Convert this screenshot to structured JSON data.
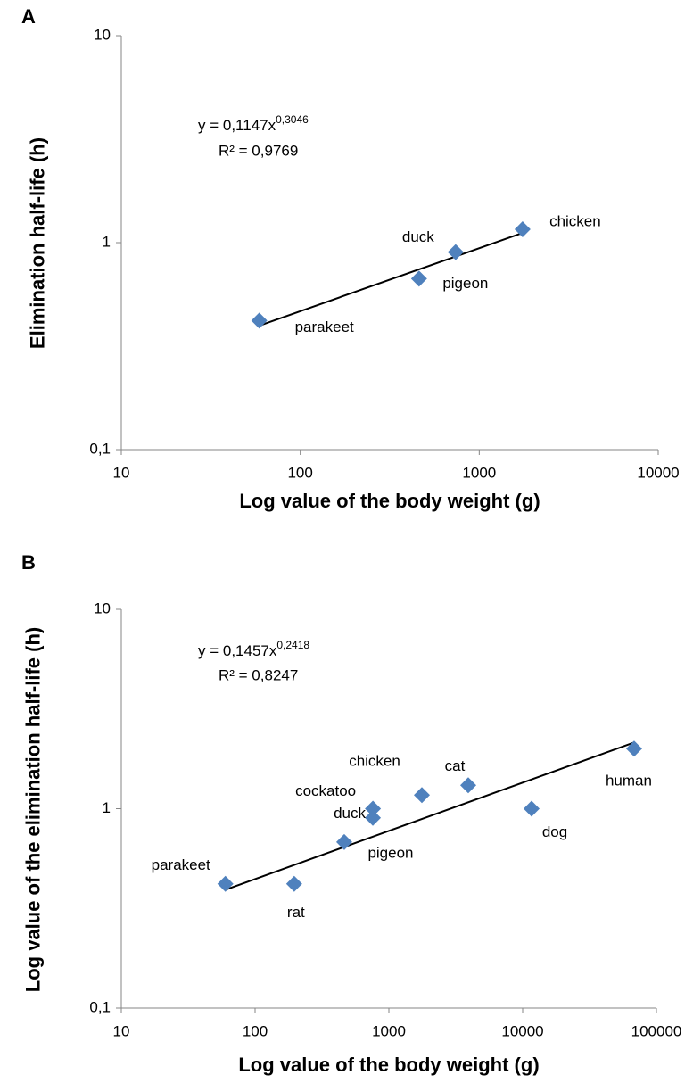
{
  "chart_data": [
    {
      "type": "scatter",
      "panel": "A",
      "labels": [
        "parakeet",
        "pigeon",
        "duck",
        "chicken"
      ],
      "x": [
        59,
        461,
        738,
        1746
      ],
      "values": [
        0.42,
        0.67,
        0.9,
        1.16
      ],
      "color": "#4f81bd",
      "trendline": {
        "coefficient": 0.1147,
        "exponent": 0.3046,
        "color": "#000000"
      },
      "equation": "y = 0,1147x",
      "equation_exponent": "0,3046",
      "r_squared": "R² = 0,9769",
      "x_label": "Log value of the body weight (g)",
      "y_label": "Elimination half-life (h)",
      "x_log": true,
      "y_log": true,
      "xlim": [
        10,
        10000
      ],
      "xticks": [
        10,
        100,
        1000,
        10000
      ],
      "ylim": [
        0.1,
        10
      ],
      "yticks": [
        {
          "value": 0.1,
          "label": "0,1"
        },
        1,
        10
      ]
    },
    {
      "type": "scatter",
      "panel": "B",
      "labels": [
        "parakeet",
        "rat",
        "pigeon",
        "duck",
        "cockatoo",
        "chicken",
        "cat",
        "dog",
        "human"
      ],
      "x": [
        60,
        196,
        464,
        759,
        760,
        1765,
        3920,
        11660,
        68100
      ],
      "values": [
        0.42,
        0.42,
        0.68,
        0.9,
        1.0,
        1.17,
        1.31,
        1.0,
        2.0
      ],
      "color": "#4f81bd",
      "trendline": {
        "coefficient": 0.1457,
        "exponent": 0.2418,
        "color": "#000000"
      },
      "equation": "y = 0,1457x",
      "equation_exponent": "0,2418",
      "r_squared": "R² = 0,8247",
      "x_label": "Log value of the body weight (g)",
      "y_label": "Log value of the elimination half-life (h)",
      "x_log": true,
      "y_log": true,
      "xlim": [
        10,
        100000
      ],
      "xticks": [
        10,
        100,
        1000,
        10000,
        100000
      ],
      "ylim": [
        0.1,
        10
      ],
      "yticks": [
        {
          "value": 0.1,
          "label": "0,1"
        },
        1,
        10
      ]
    }
  ]
}
